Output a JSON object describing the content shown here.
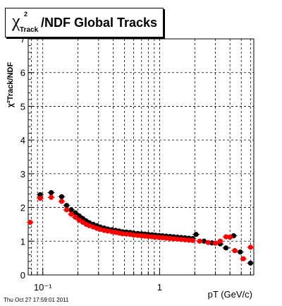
{
  "title": {
    "symbol": "χ",
    "superscript": "2",
    "subscript": "Track",
    "main": "/NDF  Global Tracks"
  },
  "footer": "Thu Oct 27 17:59:01 2011",
  "colors": {
    "black_series": "#000000",
    "red_series": "#ff0000",
    "grid": "#000000"
  },
  "chart_data": {
    "type": "scatter",
    "title": "χ²Track/NDF  Global Tracks",
    "xlabel": "pT (GeV/c)",
    "ylabel": "χ²Track/NDF",
    "x_scale": "log",
    "xlim": [
      0.075,
      6.4
    ],
    "ylim": [
      0,
      7
    ],
    "x_tick_labels": [
      {
        "x": 0.1,
        "label": "10⁻¹"
      },
      {
        "x": 1,
        "label": "1"
      }
    ],
    "y_ticks": [
      0,
      1,
      2,
      3,
      4,
      5,
      6,
      7
    ],
    "grid": true,
    "series": [
      {
        "color": "#000000",
        "points": [
          [
            0.095,
            2.38
          ],
          [
            0.118,
            2.44
          ],
          [
            0.145,
            2.32
          ],
          [
            0.16,
            2.06
          ],
          [
            0.175,
            1.93
          ],
          [
            0.19,
            1.84
          ],
          [
            0.205,
            1.75
          ],
          [
            0.22,
            1.67
          ],
          [
            0.235,
            1.6
          ],
          [
            0.25,
            1.55
          ],
          [
            0.27,
            1.5
          ],
          [
            0.29,
            1.46
          ],
          [
            0.31,
            1.42
          ],
          [
            0.335,
            1.39
          ],
          [
            0.36,
            1.36
          ],
          [
            0.39,
            1.34
          ],
          [
            0.42,
            1.32
          ],
          [
            0.45,
            1.3
          ],
          [
            0.48,
            1.28
          ],
          [
            0.52,
            1.27
          ],
          [
            0.56,
            1.26
          ],
          [
            0.6,
            1.24
          ],
          [
            0.65,
            1.23
          ],
          [
            0.7,
            1.22
          ],
          [
            0.75,
            1.21
          ],
          [
            0.8,
            1.2
          ],
          [
            0.86,
            1.19
          ],
          [
            0.92,
            1.18
          ],
          [
            0.99,
            1.17
          ],
          [
            1.06,
            1.16
          ],
          [
            1.14,
            1.15
          ],
          [
            1.23,
            1.14
          ],
          [
            1.32,
            1.13
          ],
          [
            1.42,
            1.12
          ],
          [
            1.53,
            1.11
          ],
          [
            1.65,
            1.1
          ],
          [
            1.78,
            1.09
          ],
          [
            1.92,
            1.08
          ],
          [
            2.05,
            1.2
          ],
          [
            2.4,
            1.0
          ],
          [
            2.8,
            0.95
          ],
          [
            3.3,
            0.92
          ],
          [
            3.7,
            0.8
          ],
          [
            4.3,
            1.16
          ],
          [
            4.9,
            0.68
          ],
          [
            6.0,
            0.35
          ]
        ]
      },
      {
        "color": "#ff0000",
        "points": [
          [
            0.078,
            1.56
          ],
          [
            0.095,
            2.27
          ],
          [
            0.118,
            2.3
          ],
          [
            0.145,
            2.18
          ],
          [
            0.16,
            1.93
          ],
          [
            0.175,
            1.8
          ],
          [
            0.19,
            1.71
          ],
          [
            0.205,
            1.62
          ],
          [
            0.22,
            1.56
          ],
          [
            0.235,
            1.5
          ],
          [
            0.25,
            1.46
          ],
          [
            0.27,
            1.42
          ],
          [
            0.29,
            1.38
          ],
          [
            0.31,
            1.35
          ],
          [
            0.335,
            1.32
          ],
          [
            0.36,
            1.3
          ],
          [
            0.39,
            1.28
          ],
          [
            0.42,
            1.26
          ],
          [
            0.45,
            1.24
          ],
          [
            0.48,
            1.22
          ],
          [
            0.52,
            1.21
          ],
          [
            0.56,
            1.2
          ],
          [
            0.6,
            1.18
          ],
          [
            0.65,
            1.17
          ],
          [
            0.7,
            1.16
          ],
          [
            0.75,
            1.15
          ],
          [
            0.8,
            1.14
          ],
          [
            0.86,
            1.13
          ],
          [
            0.92,
            1.12
          ],
          [
            0.99,
            1.11
          ],
          [
            1.06,
            1.1
          ],
          [
            1.14,
            1.09
          ],
          [
            1.23,
            1.08
          ],
          [
            1.32,
            1.07
          ],
          [
            1.42,
            1.06
          ],
          [
            1.53,
            1.05
          ],
          [
            1.65,
            1.04
          ],
          [
            1.78,
            1.03
          ],
          [
            1.92,
            1.02
          ],
          [
            2.2,
            1.0
          ],
          [
            2.6,
            0.96
          ],
          [
            3.0,
            0.94
          ],
          [
            3.3,
            1.0
          ],
          [
            3.7,
            1.13
          ],
          [
            4.0,
            1.12
          ],
          [
            4.4,
            0.72
          ],
          [
            5.2,
            0.48
          ],
          [
            6.0,
            0.82
          ]
        ]
      }
    ]
  }
}
